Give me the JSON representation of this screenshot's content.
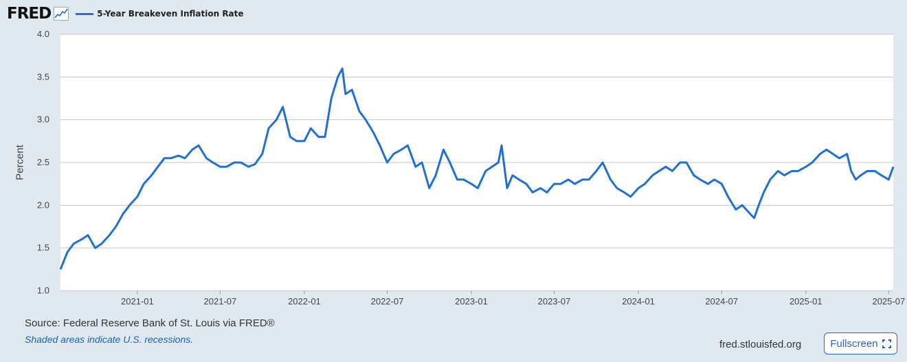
{
  "header": {
    "logo": "FRED",
    "logo_icon": "line-chart-icon"
  },
  "chart_data": {
    "type": "line",
    "ylabel": "Percent",
    "ylim": [
      1.0,
      4.0
    ],
    "yticks": [
      "1.0",
      "1.5",
      "2.0",
      "2.5",
      "3.0",
      "3.5",
      "4.0"
    ],
    "x_range": [
      "2020-07-17",
      "2025-07-11"
    ],
    "xticks": [
      "2021-01",
      "2021-07",
      "2022-01",
      "2022-07",
      "2023-01",
      "2023-07",
      "2024-01",
      "2024-07",
      "2025-01",
      "2025-07"
    ],
    "grid": true,
    "legend_position": "top-left",
    "series": [
      {
        "name": "5-Year Breakeven Inflation Rate",
        "color": "#1f6fd6",
        "x": [
          "2020-07-17",
          "2020-08-01",
          "2020-08-15",
          "2020-09-01",
          "2020-09-15",
          "2020-10-01",
          "2020-10-15",
          "2020-11-01",
          "2020-11-15",
          "2020-12-01",
          "2020-12-15",
          "2021-01-01",
          "2021-01-15",
          "2021-02-01",
          "2021-02-15",
          "2021-03-01",
          "2021-03-15",
          "2021-04-01",
          "2021-04-15",
          "2021-05-01",
          "2021-05-15",
          "2021-06-01",
          "2021-06-15",
          "2021-07-01",
          "2021-07-15",
          "2021-08-01",
          "2021-08-15",
          "2021-09-01",
          "2021-09-15",
          "2021-10-01",
          "2021-10-15",
          "2021-11-01",
          "2021-11-15",
          "2021-12-01",
          "2021-12-15",
          "2022-01-01",
          "2022-01-15",
          "2022-02-01",
          "2022-02-15",
          "2022-03-01",
          "2022-03-15",
          "2022-03-25",
          "2022-04-01",
          "2022-04-15",
          "2022-05-01",
          "2022-05-15",
          "2022-06-01",
          "2022-06-15",
          "2022-07-01",
          "2022-07-15",
          "2022-08-01",
          "2022-08-15",
          "2022-09-01",
          "2022-09-15",
          "2022-10-01",
          "2022-10-15",
          "2022-11-01",
          "2022-11-15",
          "2022-12-01",
          "2022-12-15",
          "2023-01-01",
          "2023-01-15",
          "2023-02-01",
          "2023-02-15",
          "2023-03-01",
          "2023-03-08",
          "2023-03-20",
          "2023-04-01",
          "2023-04-15",
          "2023-05-01",
          "2023-05-15",
          "2023-06-01",
          "2023-06-15",
          "2023-07-01",
          "2023-07-15",
          "2023-08-01",
          "2023-08-15",
          "2023-09-01",
          "2023-09-15",
          "2023-10-01",
          "2023-10-15",
          "2023-11-01",
          "2023-11-15",
          "2023-12-01",
          "2023-12-15",
          "2024-01-01",
          "2024-01-15",
          "2024-02-01",
          "2024-02-15",
          "2024-03-01",
          "2024-03-15",
          "2024-04-01",
          "2024-04-15",
          "2024-05-01",
          "2024-05-15",
          "2024-06-01",
          "2024-06-15",
          "2024-07-01",
          "2024-07-15",
          "2024-08-01",
          "2024-08-15",
          "2024-09-01",
          "2024-09-10",
          "2024-09-20",
          "2024-10-01",
          "2024-10-15",
          "2024-11-01",
          "2024-11-15",
          "2024-12-01",
          "2024-12-15",
          "2025-01-01",
          "2025-01-15",
          "2025-02-01",
          "2025-02-15",
          "2025-03-01",
          "2025-03-15",
          "2025-04-01",
          "2025-04-10",
          "2025-04-20",
          "2025-05-01",
          "2025-05-15",
          "2025-06-01",
          "2025-06-15",
          "2025-07-01",
          "2025-07-11"
        ],
        "y": [
          1.25,
          1.45,
          1.55,
          1.6,
          1.65,
          1.5,
          1.55,
          1.65,
          1.75,
          1.9,
          2.0,
          2.1,
          2.25,
          2.35,
          2.45,
          2.55,
          2.55,
          2.58,
          2.55,
          2.65,
          2.7,
          2.55,
          2.5,
          2.45,
          2.45,
          2.5,
          2.5,
          2.45,
          2.48,
          2.6,
          2.9,
          3.0,
          3.15,
          2.8,
          2.75,
          2.75,
          2.9,
          2.8,
          2.8,
          3.25,
          3.5,
          3.6,
          3.3,
          3.35,
          3.1,
          3.0,
          2.85,
          2.7,
          2.5,
          2.6,
          2.65,
          2.7,
          2.45,
          2.5,
          2.2,
          2.35,
          2.65,
          2.5,
          2.3,
          2.3,
          2.25,
          2.2,
          2.4,
          2.45,
          2.5,
          2.7,
          2.2,
          2.35,
          2.3,
          2.25,
          2.15,
          2.2,
          2.15,
          2.25,
          2.25,
          2.3,
          2.25,
          2.3,
          2.3,
          2.4,
          2.5,
          2.3,
          2.2,
          2.15,
          2.1,
          2.2,
          2.25,
          2.35,
          2.4,
          2.45,
          2.4,
          2.5,
          2.5,
          2.35,
          2.3,
          2.25,
          2.3,
          2.25,
          2.1,
          1.95,
          2.0,
          1.9,
          1.85,
          2.0,
          2.15,
          2.3,
          2.4,
          2.35,
          2.4,
          2.4,
          2.45,
          2.5,
          2.6,
          2.65,
          2.6,
          2.55,
          2.6,
          2.4,
          2.3,
          2.35,
          2.4,
          2.4,
          2.35,
          2.3,
          2.45
        ]
      }
    ]
  },
  "footer": {
    "source": "Source: Federal Reserve Bank of St. Louis via FRED®",
    "shaded_note": "Shaded areas indicate U.S. recessions.",
    "site": "fred.stlouisfed.org",
    "fullscreen_label": "Fullscreen",
    "fullscreen_icon": "fullscreen-icon"
  }
}
